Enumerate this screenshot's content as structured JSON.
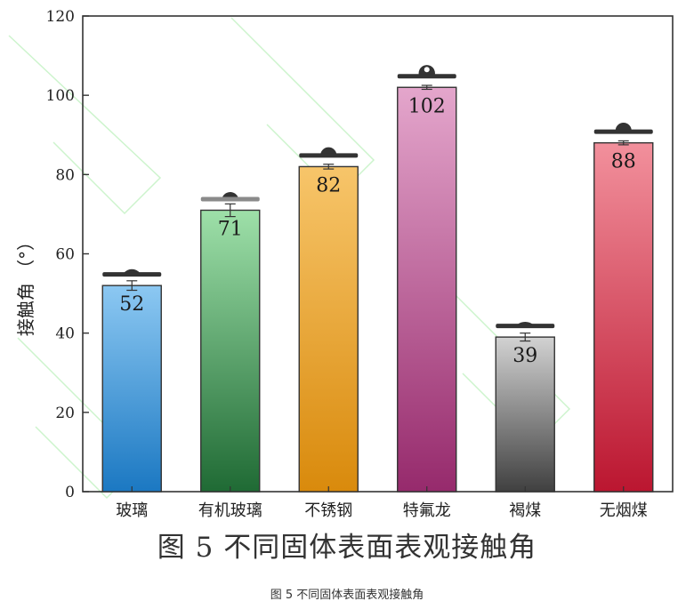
{
  "figure_title": "图 5  不同固体表面表观接触角",
  "caption": "图 5 不同固体表面表观接触角",
  "chart_data": {
    "type": "bar",
    "categories": [
      "玻璃",
      "有机玻璃",
      "不锈钢",
      "特氟龙",
      "褐煤",
      "无烟煤"
    ],
    "values": [
      52,
      71,
      82,
      102,
      39,
      88
    ],
    "value_labels": [
      "52",
      "71",
      "82",
      "102",
      "39",
      "88"
    ],
    "error": [
      1.2,
      1.6,
      0.6,
      0.5,
      1.0,
      0.5
    ],
    "ylabel": "接触角  （°）",
    "ylim": [
      0,
      120
    ],
    "yticks": [
      0,
      20,
      40,
      60,
      80,
      100,
      120
    ],
    "ytick_labels": [
      "0",
      "20",
      "40",
      "60",
      "80",
      "100",
      "120"
    ],
    "grid": false,
    "bar_colors": [
      {
        "top": "#8cc8f2",
        "bottom": "#1b78c2"
      },
      {
        "top": "#9ee0a9",
        "bottom": "#1f6a34"
      },
      {
        "top": "#f7c56a",
        "bottom": "#d98a0c"
      },
      {
        "top": "#e4a6cc",
        "bottom": "#962a6c"
      },
      {
        "top": "#d2d2d2",
        "bottom": "#404040"
      },
      {
        "top": "#f2909c",
        "bottom": "#bb1630"
      }
    ],
    "droplet_color": "#333333"
  }
}
